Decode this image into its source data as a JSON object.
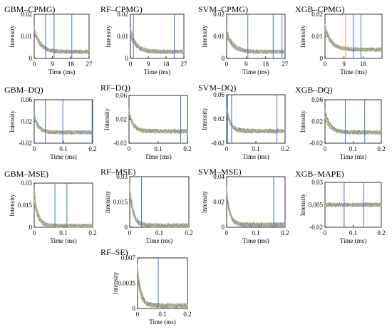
{
  "chart_data": [
    {
      "type": "line",
      "title": "GBM–CPMG)",
      "xlabel": "Time (ms)",
      "ylabel": "Intensity",
      "xlim": [
        0,
        27
      ],
      "ylim": [
        0,
        0.02
      ],
      "xticks": [
        "0",
        "9",
        "18",
        "27"
      ],
      "yticks": [
        "0",
        "0.01",
        "0.02"
      ],
      "decay": {
        "start": 0.012,
        "end": 0.003,
        "tau": 3
      },
      "markers": [
        {
          "x": 5.5,
          "color": "#4a6fd6"
        },
        {
          "x": 9.8,
          "color": "#4a6fd6"
        },
        {
          "x": 18.5,
          "color": "#4a6fd6"
        }
      ]
    },
    {
      "type": "line",
      "title": "RF–CPMG)",
      "xlabel": "Time (ms)",
      "ylabel": "Intensity",
      "xlim": [
        0,
        27
      ],
      "ylim": [
        0,
        0.02
      ],
      "xticks": [
        "0",
        "9",
        "18",
        "27"
      ],
      "yticks": [
        "0",
        "0.01",
        "0.02"
      ],
      "decay": {
        "start": 0.012,
        "end": 0.003,
        "tau": 3
      },
      "markers": [
        {
          "x": 1.5,
          "color": "#4a6fd6"
        },
        {
          "x": 22.2,
          "color": "#4a6fd6"
        }
      ]
    },
    {
      "type": "line",
      "title": "SVM–CPMG)",
      "xlabel": "Time (ms)",
      "ylabel": "Intensity",
      "xlim": [
        0,
        27
      ],
      "ylim": [
        0,
        0.02
      ],
      "xticks": [
        "0",
        "9",
        "18",
        "27"
      ],
      "yticks": [
        "0",
        "0.01",
        "0.02"
      ],
      "decay": {
        "start": 0.012,
        "end": 0.003,
        "tau": 3
      },
      "markers": [
        {
          "x": 9.8,
          "color": "#4a6fd6"
        },
        {
          "x": 21.5,
          "color": "#4a6fd6"
        },
        {
          "x": 25.6,
          "color": "#4a6fd6"
        }
      ]
    },
    {
      "type": "line",
      "title": "XGB–CPMG)",
      "xlabel": "Time (ms)",
      "ylabel": "Intensity",
      "xlim": [
        0,
        27
      ],
      "ylim": [
        0,
        0.02
      ],
      "xticks": [
        "0",
        "9",
        "18"
      ],
      "yticks": [
        "0",
        "0.01",
        "0.02"
      ],
      "decay": {
        "start": 0.014,
        "end": 0.004,
        "tau": 3
      },
      "markers": [
        {
          "x": 9.8,
          "color": "#e8a23a"
        },
        {
          "x": 13.4,
          "color": "#4a6fd6"
        },
        {
          "x": 17.0,
          "color": "#4a6fd6"
        }
      ]
    },
    {
      "type": "line",
      "title": "GBM–DQ)",
      "xlabel": "Time (ms)",
      "ylabel": "Intensity",
      "xlim": [
        0,
        0.2
      ],
      "ylim": [
        -0.02,
        0.06
      ],
      "xticks": [
        "0",
        "0.1",
        "0.2"
      ],
      "yticks": [
        "-0.02",
        "0.02",
        "0.06"
      ],
      "decay": {
        "start": 0.03,
        "end": 0.0,
        "tau": 0.015
      },
      "markers": [
        {
          "x": 0.038,
          "color": "#4a6fd6"
        },
        {
          "x": 0.098,
          "color": "#4a6fd6"
        },
        {
          "x": 0.198,
          "color": "#4a6fd6"
        }
      ]
    },
    {
      "type": "line",
      "title": "RF–DQ)",
      "xlabel": "Time (ms)",
      "ylabel": "Intensity",
      "xlim": [
        0,
        0.2
      ],
      "ylim": [
        -0.02,
        0.06
      ],
      "xticks": [
        "0",
        "0.1",
        "0.2"
      ],
      "yticks": [
        "-0.02",
        "0.02",
        "0.06"
      ],
      "decay": {
        "start": 0.03,
        "end": 0.0,
        "tau": 0.015
      },
      "markers": [
        {
          "x": 0.177,
          "color": "#4a6fd6"
        }
      ]
    },
    {
      "type": "line",
      "title": "SVM–DQ)",
      "xlabel": "Time (ms)",
      "ylabel": "Intensity",
      "xlim": [
        0,
        0.2
      ],
      "ylim": [
        -0.02,
        0.06
      ],
      "xticks": [
        "0",
        "0.1",
        "0.2"
      ],
      "yticks": [
        "-0.02",
        "0.02",
        "0.06"
      ],
      "decay": {
        "start": 0.03,
        "end": 0.0,
        "tau": 0.015
      },
      "markers": [
        {
          "x": 0.003,
          "color": "#4a6fd6"
        },
        {
          "x": 0.017,
          "color": "#4a6fd6"
        },
        {
          "x": 0.172,
          "color": "#4a6fd6"
        }
      ]
    },
    {
      "type": "line",
      "title": "XGB–DQ)",
      "xlabel": "Time (ms)",
      "ylabel": "Intensity",
      "xlim": [
        0,
        0.2
      ],
      "ylim": [
        -0.02,
        0.06
      ],
      "xticks": [
        "0",
        "0.1",
        "0.2"
      ],
      "yticks": [
        "-0.02",
        "0.02",
        "0.06"
      ],
      "decay": {
        "start": 0.035,
        "end": 0.0,
        "tau": 0.018
      },
      "markers": [
        {
          "x": 0.072,
          "color": "#4a6fd6"
        },
        {
          "x": 0.141,
          "color": "#4a6fd6"
        }
      ]
    },
    {
      "type": "line",
      "title": "GBM–MSE)",
      "xlabel": "Time (ms)",
      "ylabel": "Intensity",
      "xlim": [
        0,
        0.2
      ],
      "ylim": [
        0,
        0.03
      ],
      "xticks": [
        "0",
        "0.1",
        "0.2"
      ],
      "yticks": [
        "0",
        "0.015",
        "0.03"
      ],
      "decay": {
        "start": 0.022,
        "end": 0.001,
        "tau": 0.013
      },
      "markers": [
        {
          "x": 0.071,
          "color": "#4a6fd6"
        },
        {
          "x": 0.112,
          "color": "#4a6fd6"
        }
      ]
    },
    {
      "type": "line",
      "title": "RF–MSE)",
      "xlabel": "Time (ms)",
      "ylabel": "Intensity",
      "xlim": [
        0,
        0.2
      ],
      "ylim": [
        0,
        0.03
      ],
      "xticks": [
        "0",
        "0.1",
        "0.2"
      ],
      "yticks": [
        "0",
        "0.015",
        "0.03"
      ],
      "decay": {
        "start": 0.022,
        "end": 0.001,
        "tau": 0.013
      },
      "markers": [
        {
          "x": 0.04,
          "color": "#4a6fd6"
        }
      ]
    },
    {
      "type": "line",
      "title": "SVM–MSE)",
      "xlabel": "Time (ms)",
      "ylabel": "Intensity",
      "xlim": [
        0,
        0.2
      ],
      "ylim": [
        0,
        0.04
      ],
      "xticks": [
        "0",
        "0.1",
        "0.2"
      ],
      "yticks": [
        "0",
        "0.02",
        "0.04"
      ],
      "decay": {
        "start": 0.025,
        "end": 0.002,
        "tau": 0.012
      },
      "markers": [
        {
          "x": 0.161,
          "color": "#4a6fd6"
        }
      ]
    },
    {
      "type": "line",
      "title": "XGB–MAPE)",
      "xlabel": "Time (ms)",
      "ylabel": "Intensity",
      "xlim": [
        0,
        0.2
      ],
      "ylim": [
        -0.02,
        0.03
      ],
      "xticks": [
        "0",
        "0.1",
        "0.2"
      ],
      "yticks": [
        "-0.02",
        "0.005",
        "0.03"
      ],
      "decay": {
        "start": 0.005,
        "end": 0.005,
        "tau": 0.05
      },
      "markers": [
        {
          "x": 0.068,
          "color": "#4a6fd6"
        },
        {
          "x": 0.137,
          "color": "#4a6fd6"
        }
      ]
    },
    {
      "type": "line",
      "title": "RF–SE)",
      "xlabel": "Time (ms)",
      "ylabel": "Intensity",
      "xlim": [
        0,
        0.2
      ],
      "ylim": [
        0,
        0.007
      ],
      "xticks": [
        "0",
        "0.1",
        "0.2"
      ],
      "yticks": [
        "0",
        "0.0035",
        "0.007"
      ],
      "decay": {
        "start": 0.005,
        "end": 0.0004,
        "tau": 0.014
      },
      "markers": [
        {
          "x": 0.083,
          "color": "#4a6fd6"
        }
      ]
    }
  ],
  "colors": [
    "#c7c930",
    "#8fb846",
    "#d8c244",
    "#707070",
    "#8b8fc9",
    "#9ec08a",
    "#b0a040",
    "#5f7f4a",
    "#c4b8d8",
    "#e0d060",
    "#6e86b8",
    "#a8a8a8"
  ]
}
